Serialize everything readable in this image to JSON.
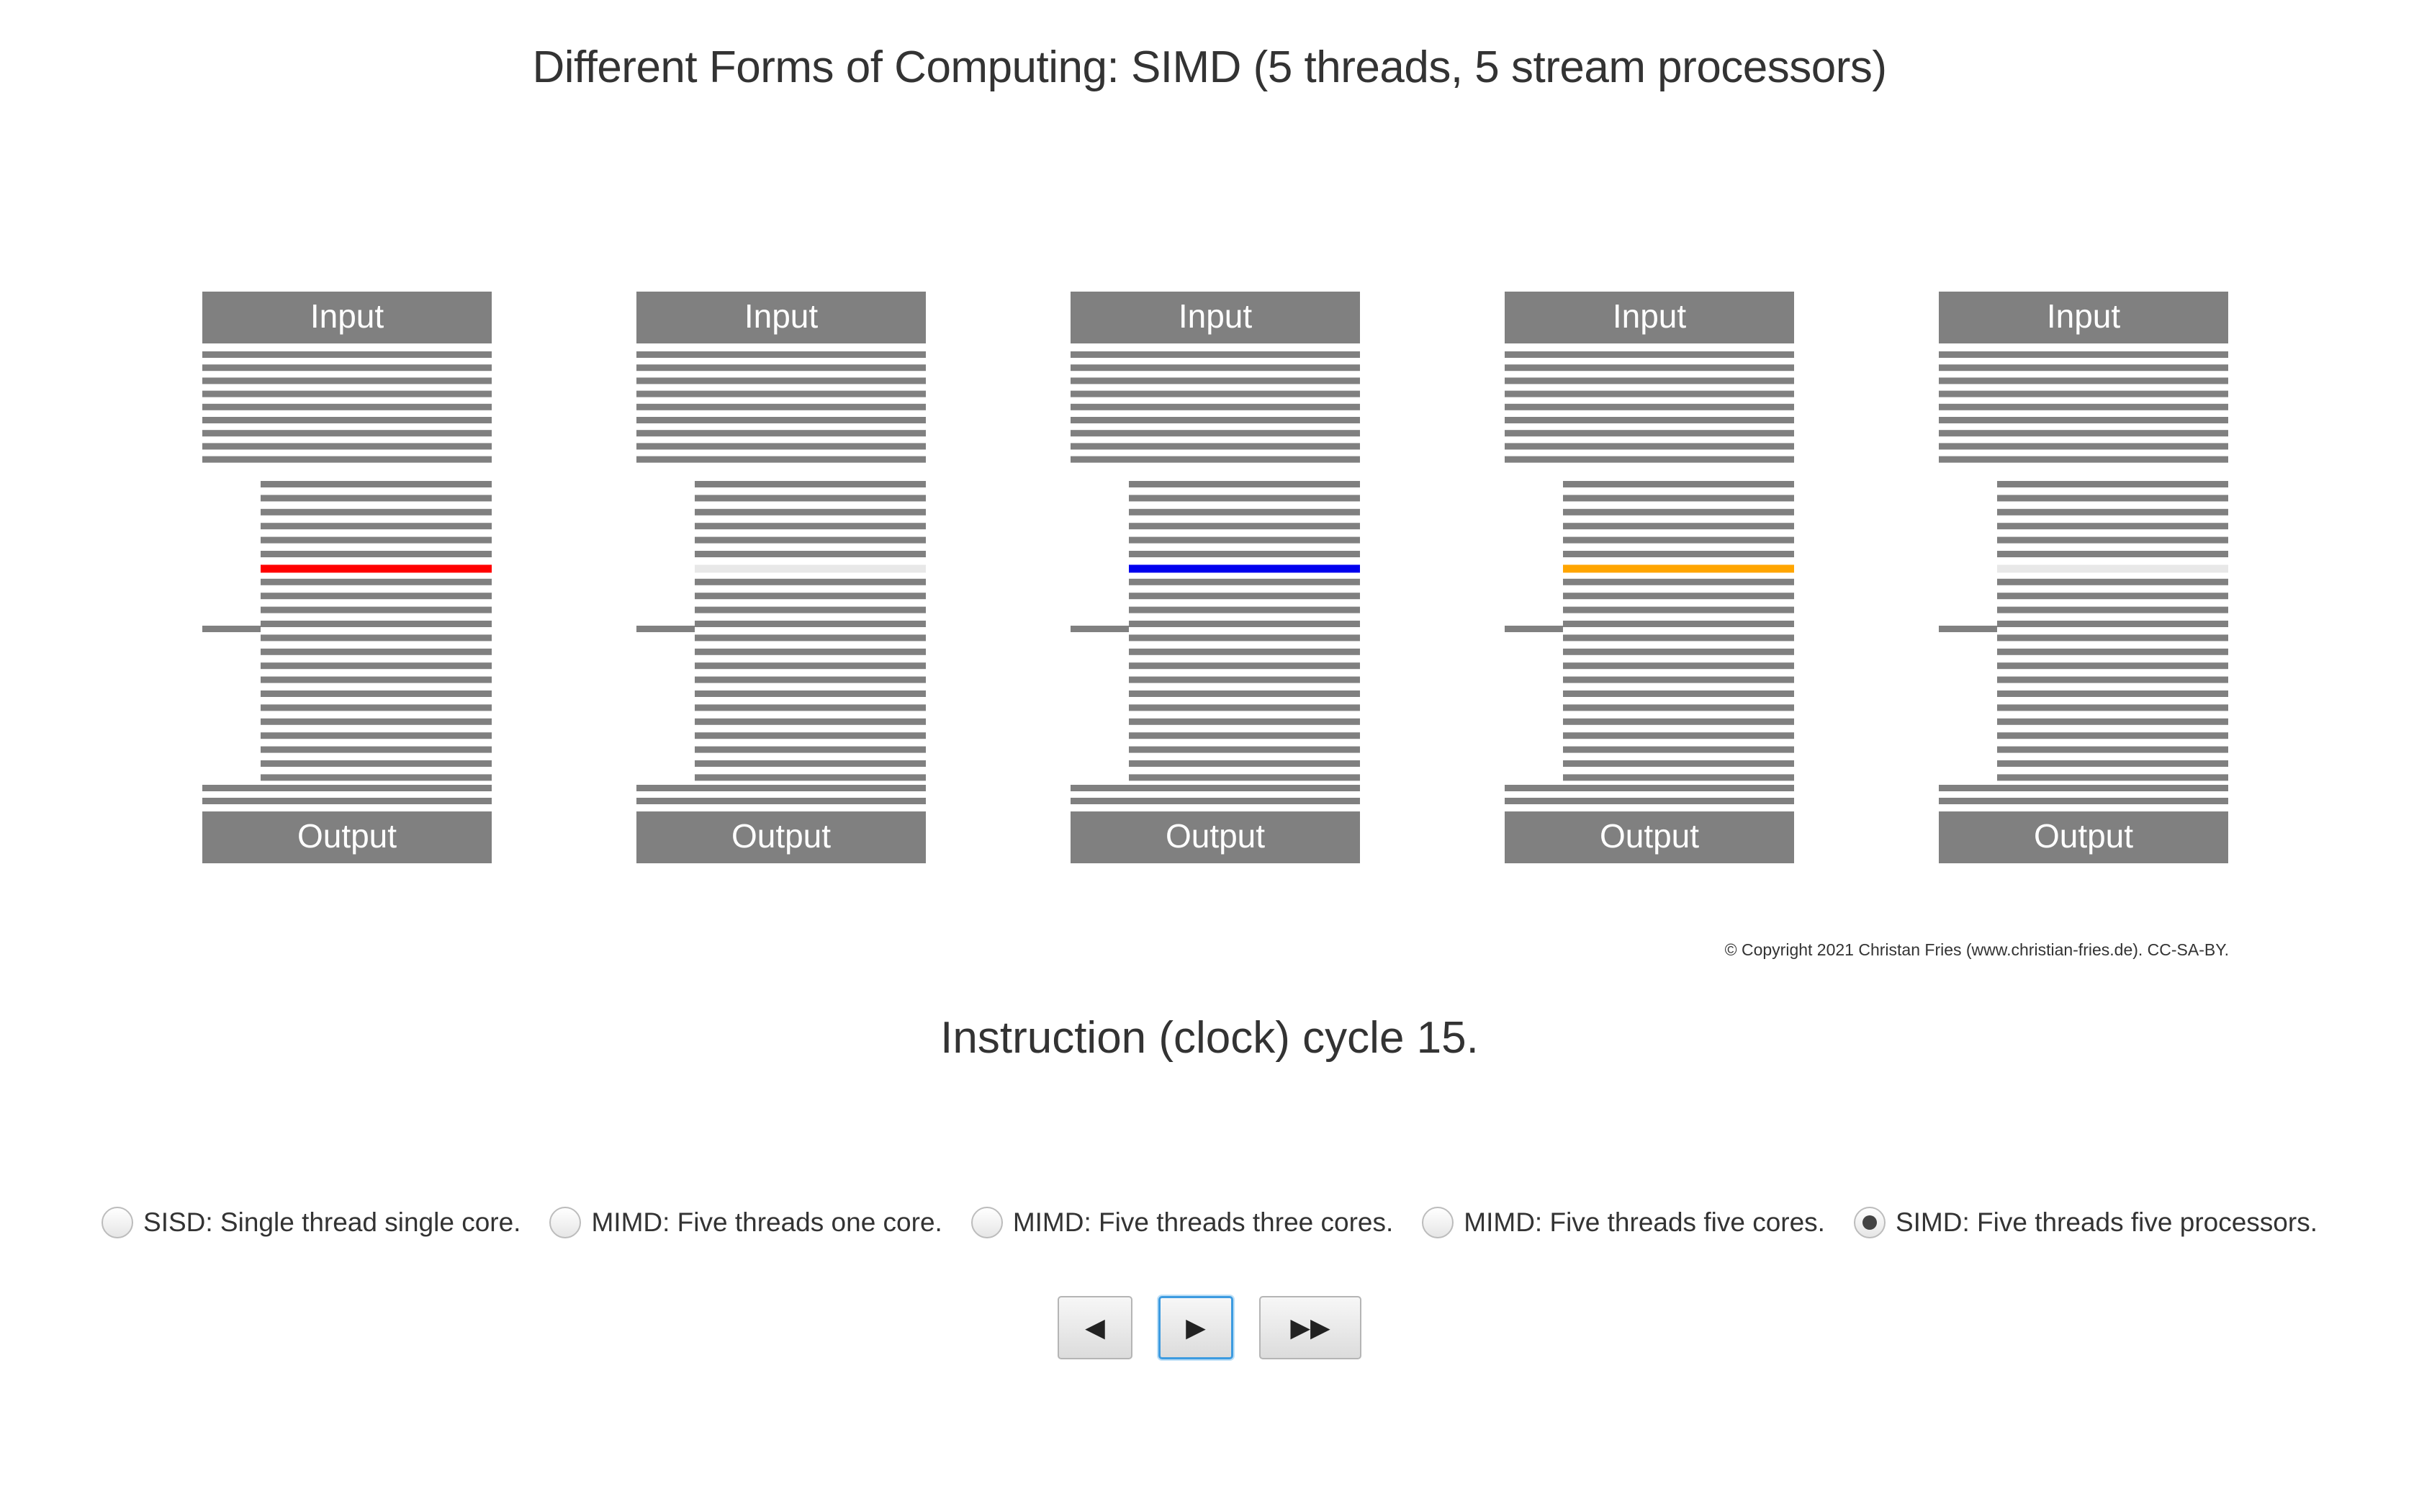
{
  "header": {
    "title": "Different Forms of Computing: SIMD (5 threads, 5 stream processors)"
  },
  "diagram": {
    "processors": [
      {
        "input_label": "Input",
        "output_label": "Output",
        "active_color": "#ff0000"
      },
      {
        "input_label": "Input",
        "output_label": "Output",
        "active_color": "#e8e8e8"
      },
      {
        "input_label": "Input",
        "output_label": "Output",
        "active_color": "#0000ee"
      },
      {
        "input_label": "Input",
        "output_label": "Output",
        "active_color": "#ffa500"
      },
      {
        "input_label": "Input",
        "output_label": "Output",
        "active_color": "#e8e8e8"
      }
    ],
    "instruction_color": "#808080",
    "active_instruction_index": 6
  },
  "copyright": "© Copyright 2021 Christan Fries (www.christian-fries.de). CC-SA-BY.",
  "status": {
    "cycle_text": "Instruction (clock) cycle 15."
  },
  "modes": {
    "selected_index": 4,
    "options": [
      "SISD: Single thread single core.",
      "MIMD: Five threads one core.",
      "MIMD: Five threads three cores.",
      "MIMD: Five threads five cores.",
      "SIMD: Five threads five processors."
    ]
  },
  "controls": {
    "back": {
      "glyph": "◀",
      "icon": "step-back-icon"
    },
    "play": {
      "glyph": "▶",
      "icon": "play-icon"
    },
    "fast_forward": {
      "glyph": "▶▶",
      "icon": "fast-forward-icon"
    }
  }
}
